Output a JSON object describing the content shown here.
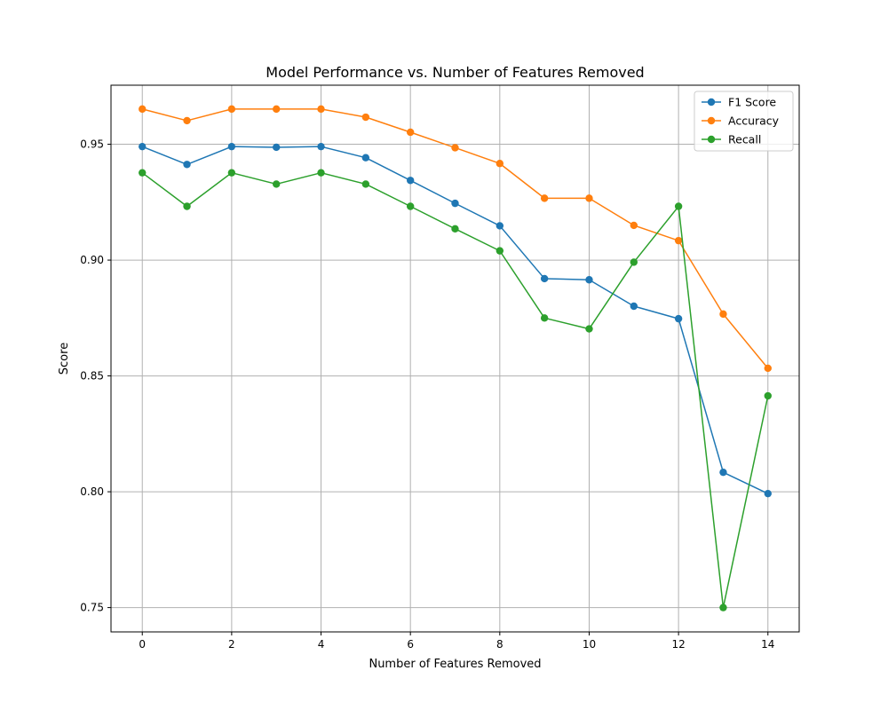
{
  "chart_data": {
    "type": "line",
    "title": "Model Performance vs. Number of Features Removed",
    "xlabel": "Number of Features Removed",
    "ylabel": "Score",
    "xlim": [
      -0.7,
      14.7
    ],
    "ylim": [
      0.7395,
      0.9755
    ],
    "xticks": [
      0,
      2,
      4,
      6,
      8,
      10,
      12,
      14
    ],
    "yticks": [
      0.75,
      0.8,
      0.85,
      0.9,
      0.95
    ],
    "ytick_labels": [
      "0.75",
      "0.80",
      "0.85",
      "0.90",
      "0.95"
    ],
    "grid": true,
    "legend": "top-right",
    "x": [
      0,
      1,
      2,
      3,
      4,
      5,
      6,
      7,
      8,
      9,
      10,
      11,
      12,
      13,
      14
    ],
    "series": [
      {
        "name": "F1 Score",
        "color": "#1f77b4",
        "values": [
          0.949,
          0.9413,
          0.949,
          0.9487,
          0.949,
          0.9442,
          0.9344,
          0.9245,
          0.9148,
          0.892,
          0.8915,
          0.8801,
          0.8747,
          0.8084,
          0.7992
        ]
      },
      {
        "name": "Accuracy",
        "color": "#ff7f0e",
        "values": [
          0.9652,
          0.9602,
          0.9652,
          0.9652,
          0.9652,
          0.9617,
          0.9552,
          0.9485,
          0.9417,
          0.9267,
          0.9267,
          0.915,
          0.9084,
          0.8767,
          0.8533
        ]
      },
      {
        "name": "Recall",
        "color": "#2ca02c",
        "values": [
          0.9377,
          0.9232,
          0.9377,
          0.9328,
          0.9377,
          0.9328,
          0.9232,
          0.9135,
          0.904,
          0.875,
          0.8703,
          0.8991,
          0.9232,
          0.75,
          0.8414
        ]
      }
    ]
  }
}
